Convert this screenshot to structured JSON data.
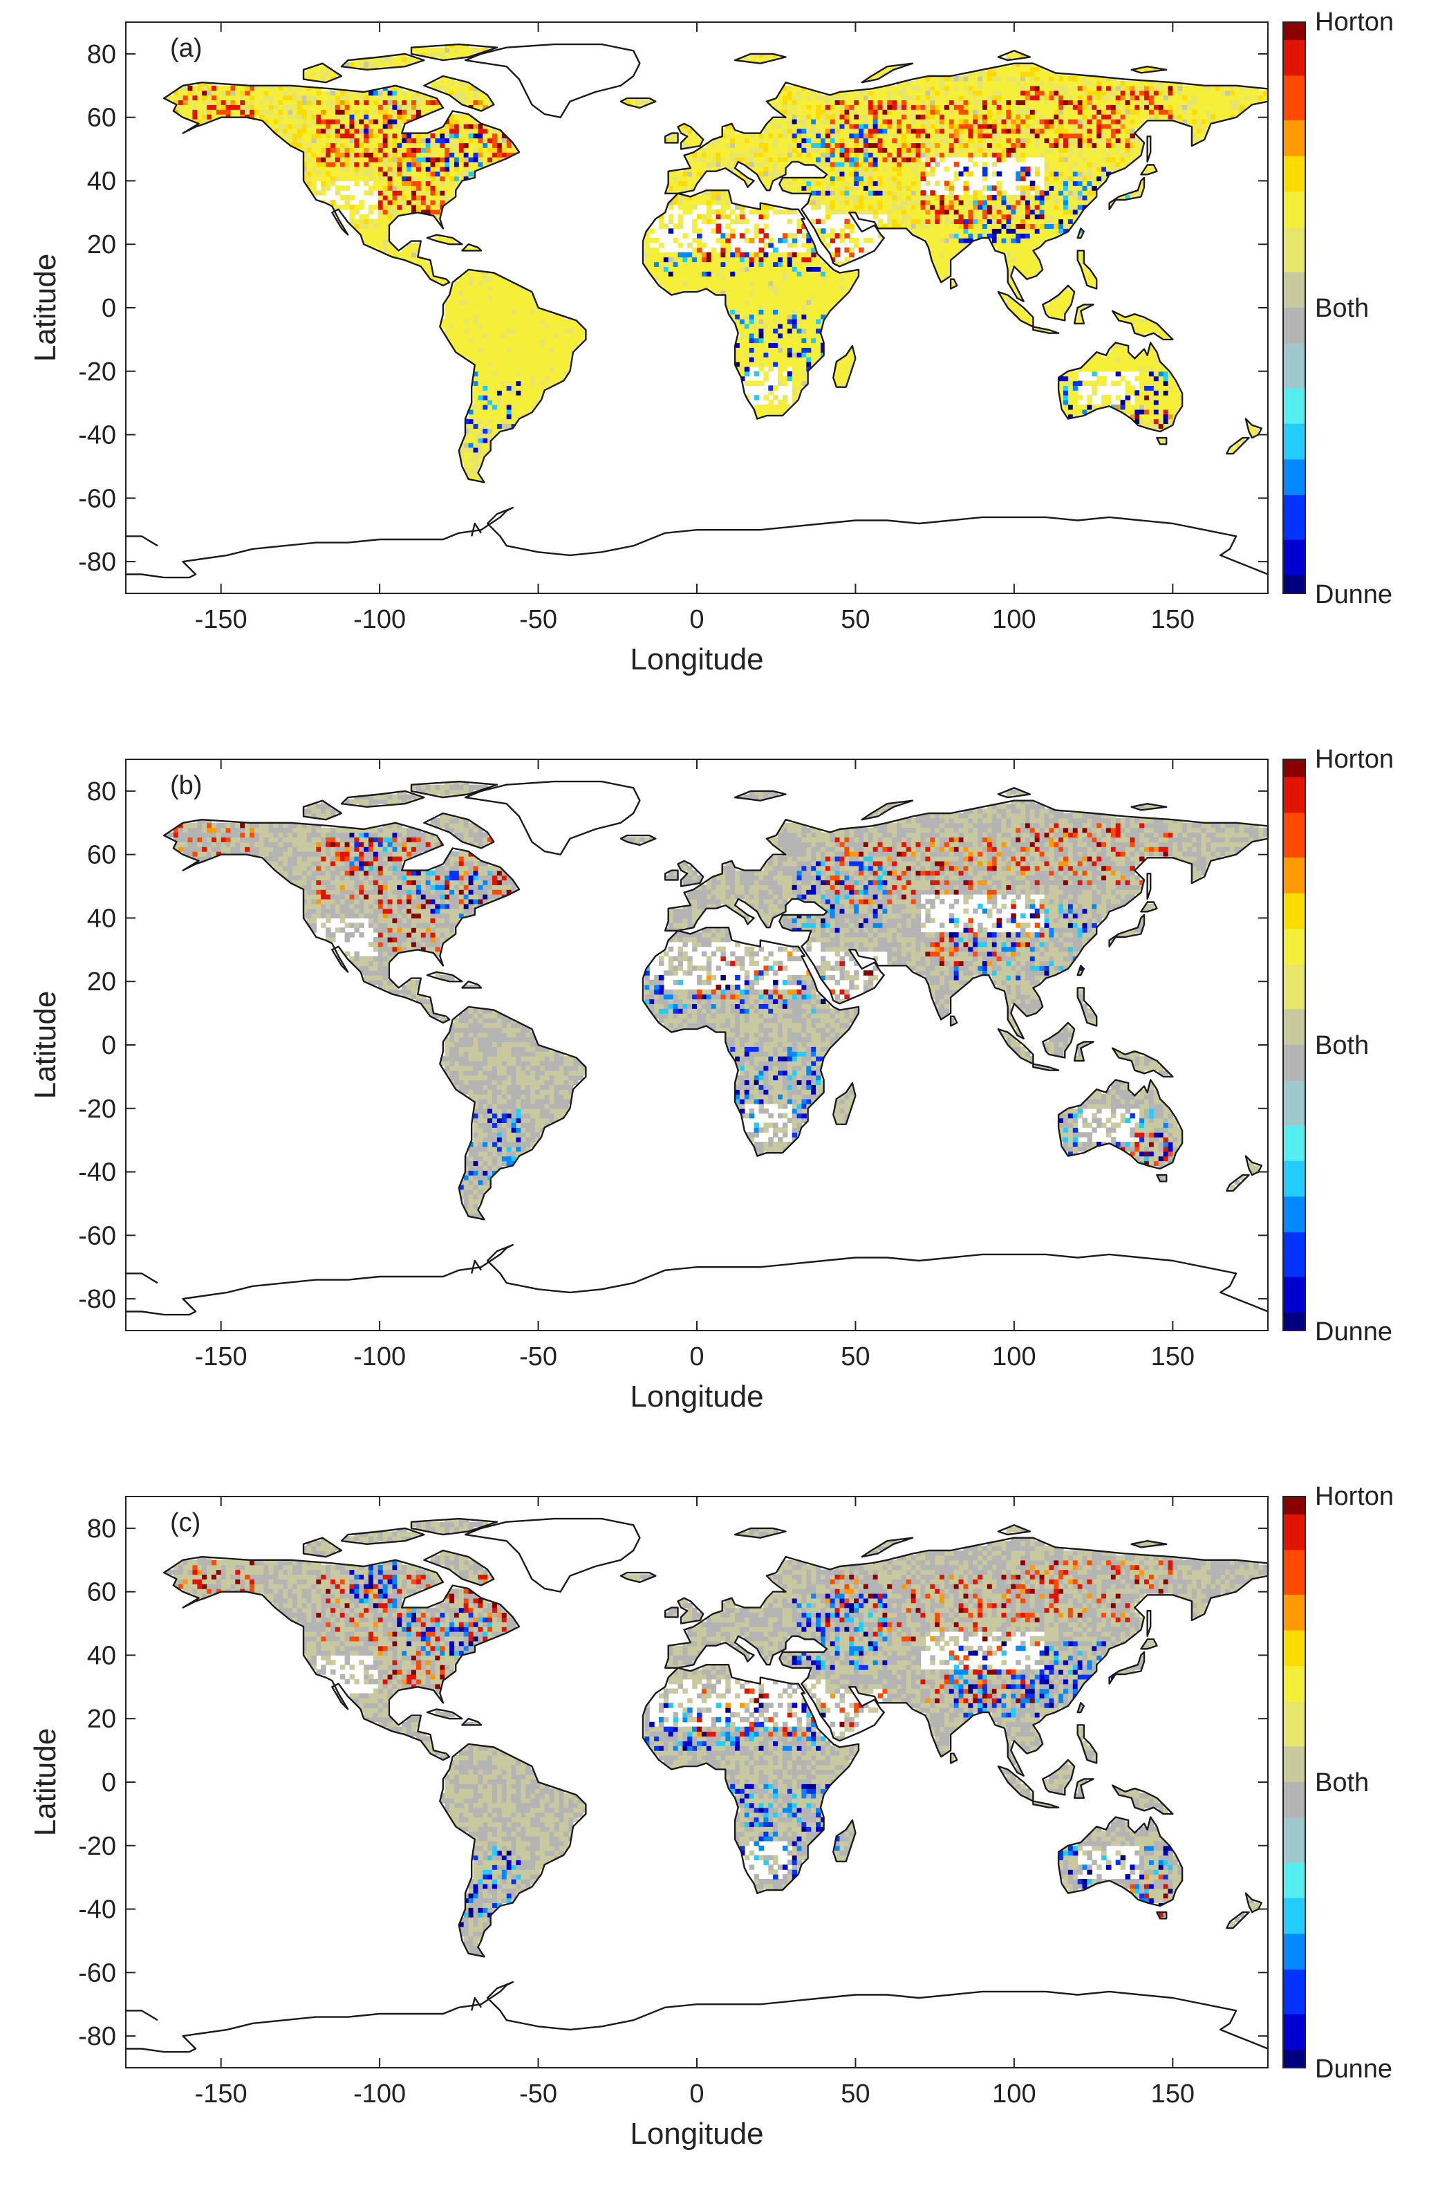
{
  "figure": {
    "colorbar": {
      "top_label": "Horton",
      "middle_label": "Both",
      "bottom_label": "Dunne",
      "colors": [
        "#00007f",
        "#0000d0",
        "#0033ff",
        "#0088ff",
        "#22ccff",
        "#55eeee",
        "#9fc8cc",
        "#b4b4b4",
        "#c9c9a0",
        "#e8e66a",
        "#f5ef3a",
        "#ffdc00",
        "#ff9a00",
        "#ff4a00",
        "#e01400",
        "#8a0000"
      ]
    },
    "panels": [
      {
        "label": "(a)",
        "variant": "a"
      },
      {
        "label": "(b)",
        "variant": "b"
      },
      {
        "label": "(c)",
        "variant": "c"
      }
    ],
    "x_axis": {
      "title": "Longitude",
      "ticks": [
        "-150",
        "-100",
        "-50",
        "0",
        "50",
        "100",
        "150"
      ],
      "tick_values": [
        -150,
        -100,
        -50,
        0,
        50,
        100,
        150
      ],
      "range": [
        -180,
        180
      ]
    },
    "y_axis": {
      "title": "Latitude",
      "ticks": [
        "80",
        "60",
        "40",
        "20",
        "0",
        "-20",
        "-40",
        "-60",
        "-80"
      ],
      "tick_values": [
        80,
        60,
        40,
        20,
        0,
        -20,
        -40,
        -60,
        -80
      ],
      "range": [
        -90,
        90
      ]
    },
    "legend_colors": {
      "horton": "#8a0000",
      "both": "#b4b4b4",
      "dunne": "#00007f",
      "land_mixed": "#c9c9a0",
      "yellow": "#f2ec46"
    }
  }
}
